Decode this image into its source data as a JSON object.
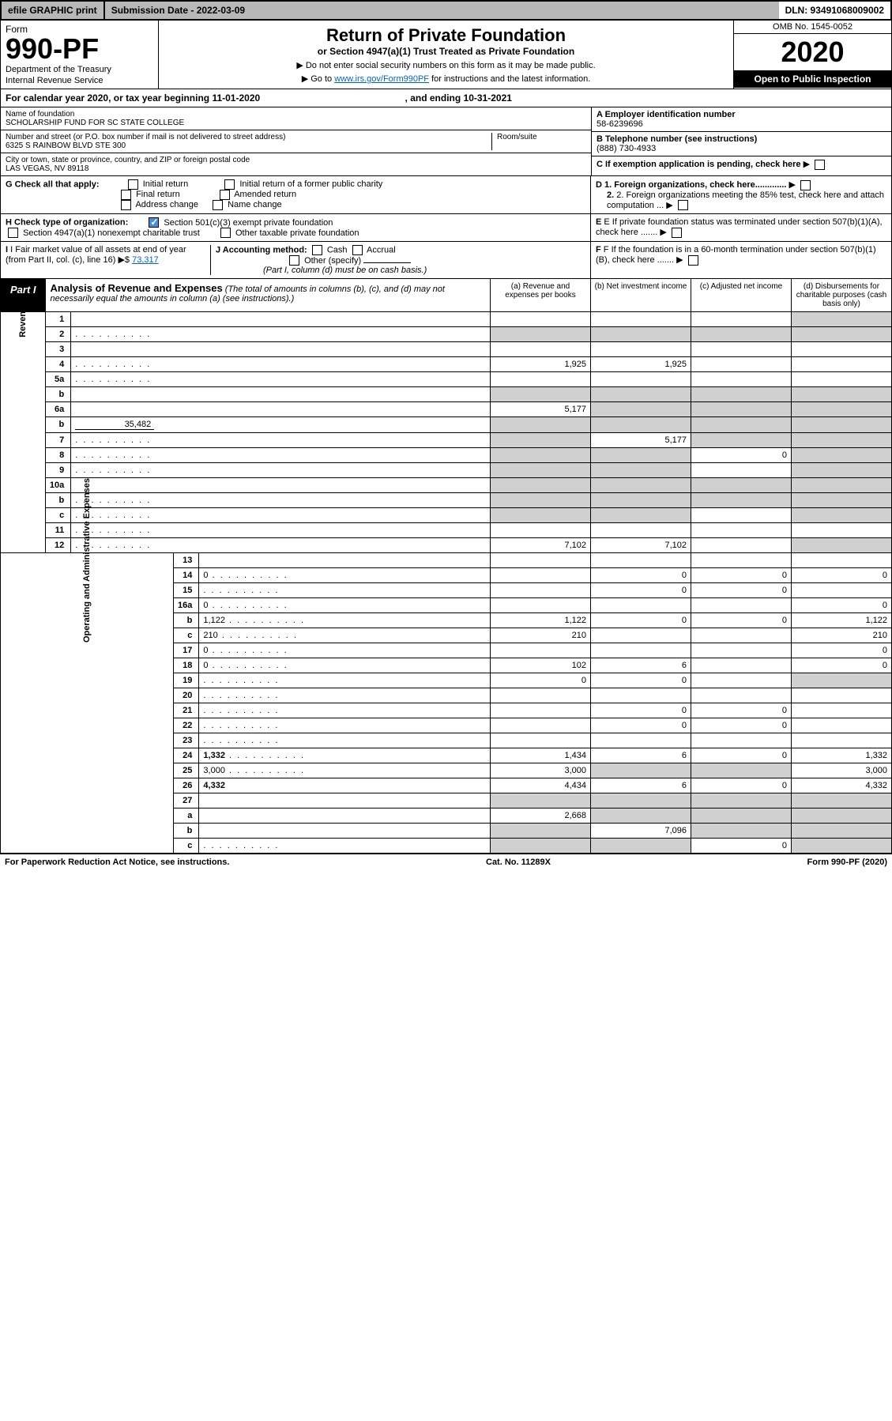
{
  "topbar": {
    "efile": "efile GRAPHIC print",
    "submission": "Submission Date - 2022-03-09",
    "dln": "DLN: 93491068009002"
  },
  "header": {
    "form_label": "Form",
    "form_num": "990-PF",
    "dept": "Department of the Treasury",
    "irs": "Internal Revenue Service",
    "title": "Return of Private Foundation",
    "subtitle": "or Section 4947(a)(1) Trust Treated as Private Foundation",
    "note1": "▶ Do not enter social security numbers on this form as it may be made public.",
    "note2_pre": "▶ Go to ",
    "note2_link": "www.irs.gov/Form990PF",
    "note2_post": " for instructions and the latest information.",
    "omb": "OMB No. 1545-0052",
    "year": "2020",
    "open": "Open to Public Inspection"
  },
  "cal": {
    "text_pre": "For calendar year 2020, or tax year beginning ",
    "begin": "11-01-2020",
    "text_mid": " , and ending ",
    "end": "10-31-2021"
  },
  "foundation": {
    "name_lbl": "Name of foundation",
    "name": "SCHOLARSHIP FUND FOR SC STATE COLLEGE",
    "addr_lbl": "Number and street (or P.O. box number if mail is not delivered to street address)",
    "addr": "6325 S RAINBOW BLVD STE 300",
    "room_lbl": "Room/suite",
    "city_lbl": "City or town, state or province, country, and ZIP or foreign postal code",
    "city": "LAS VEGAS, NV  89118"
  },
  "right": {
    "ein_lbl": "A Employer identification number",
    "ein": "58-6239696",
    "tel_lbl": "B Telephone number (see instructions)",
    "tel": "(888) 730-4933",
    "c": "C If exemption application is pending, check here",
    "d1": "D 1. Foreign organizations, check here.............",
    "d2": "2. Foreign organizations meeting the 85% test, check here and attach computation ...",
    "e": "E If private foundation status was terminated under section 507(b)(1)(A), check here .......",
    "f": "F If the foundation is in a 60-month termination under section 507(b)(1)(B), check here ......."
  },
  "g": {
    "label": "G Check all that apply:",
    "opts": [
      "Initial return",
      "Final return",
      "Address change",
      "Initial return of a former public charity",
      "Amended return",
      "Name change"
    ]
  },
  "h": {
    "label": "H Check type of organization:",
    "opt1": "Section 501(c)(3) exempt private foundation",
    "opt2": "Section 4947(a)(1) nonexempt charitable trust",
    "opt3": "Other taxable private foundation"
  },
  "i": {
    "label": "I Fair market value of all assets at end of year (from Part II, col. (c), line 16)",
    "arrow": "▶$",
    "val": "73,317"
  },
  "j": {
    "label": "J Accounting method:",
    "cash": "Cash",
    "accrual": "Accrual",
    "other": "Other (specify)",
    "note": "(Part I, column (d) must be on cash basis.)"
  },
  "part1": {
    "badge": "Part I",
    "title": "Analysis of Revenue and Expenses",
    "note": "(The total of amounts in columns (b), (c), and (d) may not necessarily equal the amounts in column (a) (see instructions).)",
    "col_a": "(a) Revenue and expenses per books",
    "col_b": "(b) Net investment income",
    "col_c": "(c) Adjusted net income",
    "col_d": "(d) Disbursements for charitable purposes (cash basis only)"
  },
  "sections": {
    "revenue": "Revenue",
    "opex": "Operating and Administrative Expenses"
  },
  "lines": [
    {
      "n": "1",
      "d": "",
      "a": "",
      "b": "",
      "c": "",
      "sd": true
    },
    {
      "n": "2",
      "d": "",
      "a": "",
      "b": "",
      "c": "",
      "sd": true,
      "bold_not": true,
      "dots": true,
      "allshade": true
    },
    {
      "n": "3",
      "d": "",
      "a": "",
      "b": "",
      "c": ""
    },
    {
      "n": "4",
      "d": "",
      "a": "1,925",
      "b": "1,925",
      "c": "",
      "dots": true
    },
    {
      "n": "5a",
      "d": "",
      "a": "",
      "b": "",
      "c": "",
      "dots": true
    },
    {
      "n": "b",
      "d": "",
      "a": "",
      "b": "",
      "c": "",
      "sd": true,
      "allshade": true
    },
    {
      "n": "6a",
      "d": "",
      "a": "5,177",
      "b": "",
      "c": "",
      "sb": true,
      "sc": true,
      "sd": true
    },
    {
      "n": "b",
      "d": "",
      "inline": "35,482",
      "a": "",
      "b": "",
      "c": "",
      "sd": true,
      "allshade": true
    },
    {
      "n": "7",
      "d": "",
      "a": "",
      "b": "5,177",
      "c": "",
      "sa": true,
      "sc": true,
      "sd": true,
      "dots": true
    },
    {
      "n": "8",
      "d": "",
      "a": "",
      "b": "",
      "c": "0",
      "sa": true,
      "sb": true,
      "sd": true,
      "dots": true
    },
    {
      "n": "9",
      "d": "",
      "a": "",
      "b": "",
      "c": "",
      "sa": true,
      "sb": true,
      "sd": true,
      "dots": true
    },
    {
      "n": "10a",
      "d": "",
      "a": "",
      "b": "",
      "c": "",
      "sd": true,
      "allshade": true
    },
    {
      "n": "b",
      "d": "",
      "a": "",
      "b": "",
      "c": "",
      "sd": true,
      "dots": true,
      "allshade": true
    },
    {
      "n": "c",
      "d": "",
      "a": "",
      "b": "",
      "c": "",
      "sa": true,
      "sb": true,
      "sd": true,
      "dots": true
    },
    {
      "n": "11",
      "d": "",
      "a": "",
      "b": "",
      "c": "",
      "dots": true
    },
    {
      "n": "12",
      "d": "",
      "a": "7,102",
      "b": "7,102",
      "c": "",
      "bold": true,
      "sd": true,
      "dots": true
    }
  ],
  "oplines": [
    {
      "n": "13",
      "d": "",
      "a": "",
      "b": "",
      "c": ""
    },
    {
      "n": "14",
      "d": "0",
      "a": "",
      "b": "0",
      "c": "0",
      "dots": true
    },
    {
      "n": "15",
      "d": "",
      "a": "",
      "b": "0",
      "c": "0",
      "dots": true
    },
    {
      "n": "16a",
      "d": "0",
      "a": "",
      "b": "",
      "c": "",
      "dots": true
    },
    {
      "n": "b",
      "d": "1,122",
      "a": "1,122",
      "b": "0",
      "c": "0",
      "dots": true
    },
    {
      "n": "c",
      "d": "210",
      "a": "210",
      "b": "",
      "c": "",
      "dots": true
    },
    {
      "n": "17",
      "d": "0",
      "a": "",
      "b": "",
      "c": "",
      "dots": true
    },
    {
      "n": "18",
      "d": "0",
      "a": "102",
      "b": "6",
      "c": "",
      "dots": true
    },
    {
      "n": "19",
      "d": "",
      "a": "0",
      "b": "0",
      "c": "",
      "sd": true,
      "dots": true
    },
    {
      "n": "20",
      "d": "",
      "a": "",
      "b": "",
      "c": "",
      "dots": true
    },
    {
      "n": "21",
      "d": "",
      "a": "",
      "b": "0",
      "c": "0",
      "dots": true
    },
    {
      "n": "22",
      "d": "",
      "a": "",
      "b": "0",
      "c": "0",
      "dots": true
    },
    {
      "n": "23",
      "d": "",
      "a": "",
      "b": "",
      "c": "",
      "dots": true
    },
    {
      "n": "24",
      "d": "1,332",
      "a": "1,434",
      "b": "6",
      "c": "0",
      "bold": true,
      "dots": true
    },
    {
      "n": "25",
      "d": "3,000",
      "a": "3,000",
      "b": "",
      "c": "",
      "sb": true,
      "sc": true,
      "dots": true
    },
    {
      "n": "26",
      "d": "4,332",
      "a": "4,434",
      "b": "6",
      "c": "0",
      "bold": true
    },
    {
      "n": "27",
      "d": "",
      "a": "",
      "b": "",
      "c": "",
      "allshade": true
    },
    {
      "n": "a",
      "d": "",
      "a": "2,668",
      "b": "",
      "c": "",
      "bold": true,
      "sb": true,
      "sc": true,
      "sd": true
    },
    {
      "n": "b",
      "d": "",
      "a": "",
      "b": "7,096",
      "c": "",
      "bold": true,
      "sa": true,
      "sc": true,
      "sd": true
    },
    {
      "n": "c",
      "d": "",
      "a": "",
      "b": "",
      "c": "0",
      "bold": true,
      "sa": true,
      "sb": true,
      "sd": true,
      "dots": true
    }
  ],
  "footer": {
    "left": "For Paperwork Reduction Act Notice, see instructions.",
    "mid": "Cat. No. 11289X",
    "right": "Form 990-PF (2020)"
  }
}
